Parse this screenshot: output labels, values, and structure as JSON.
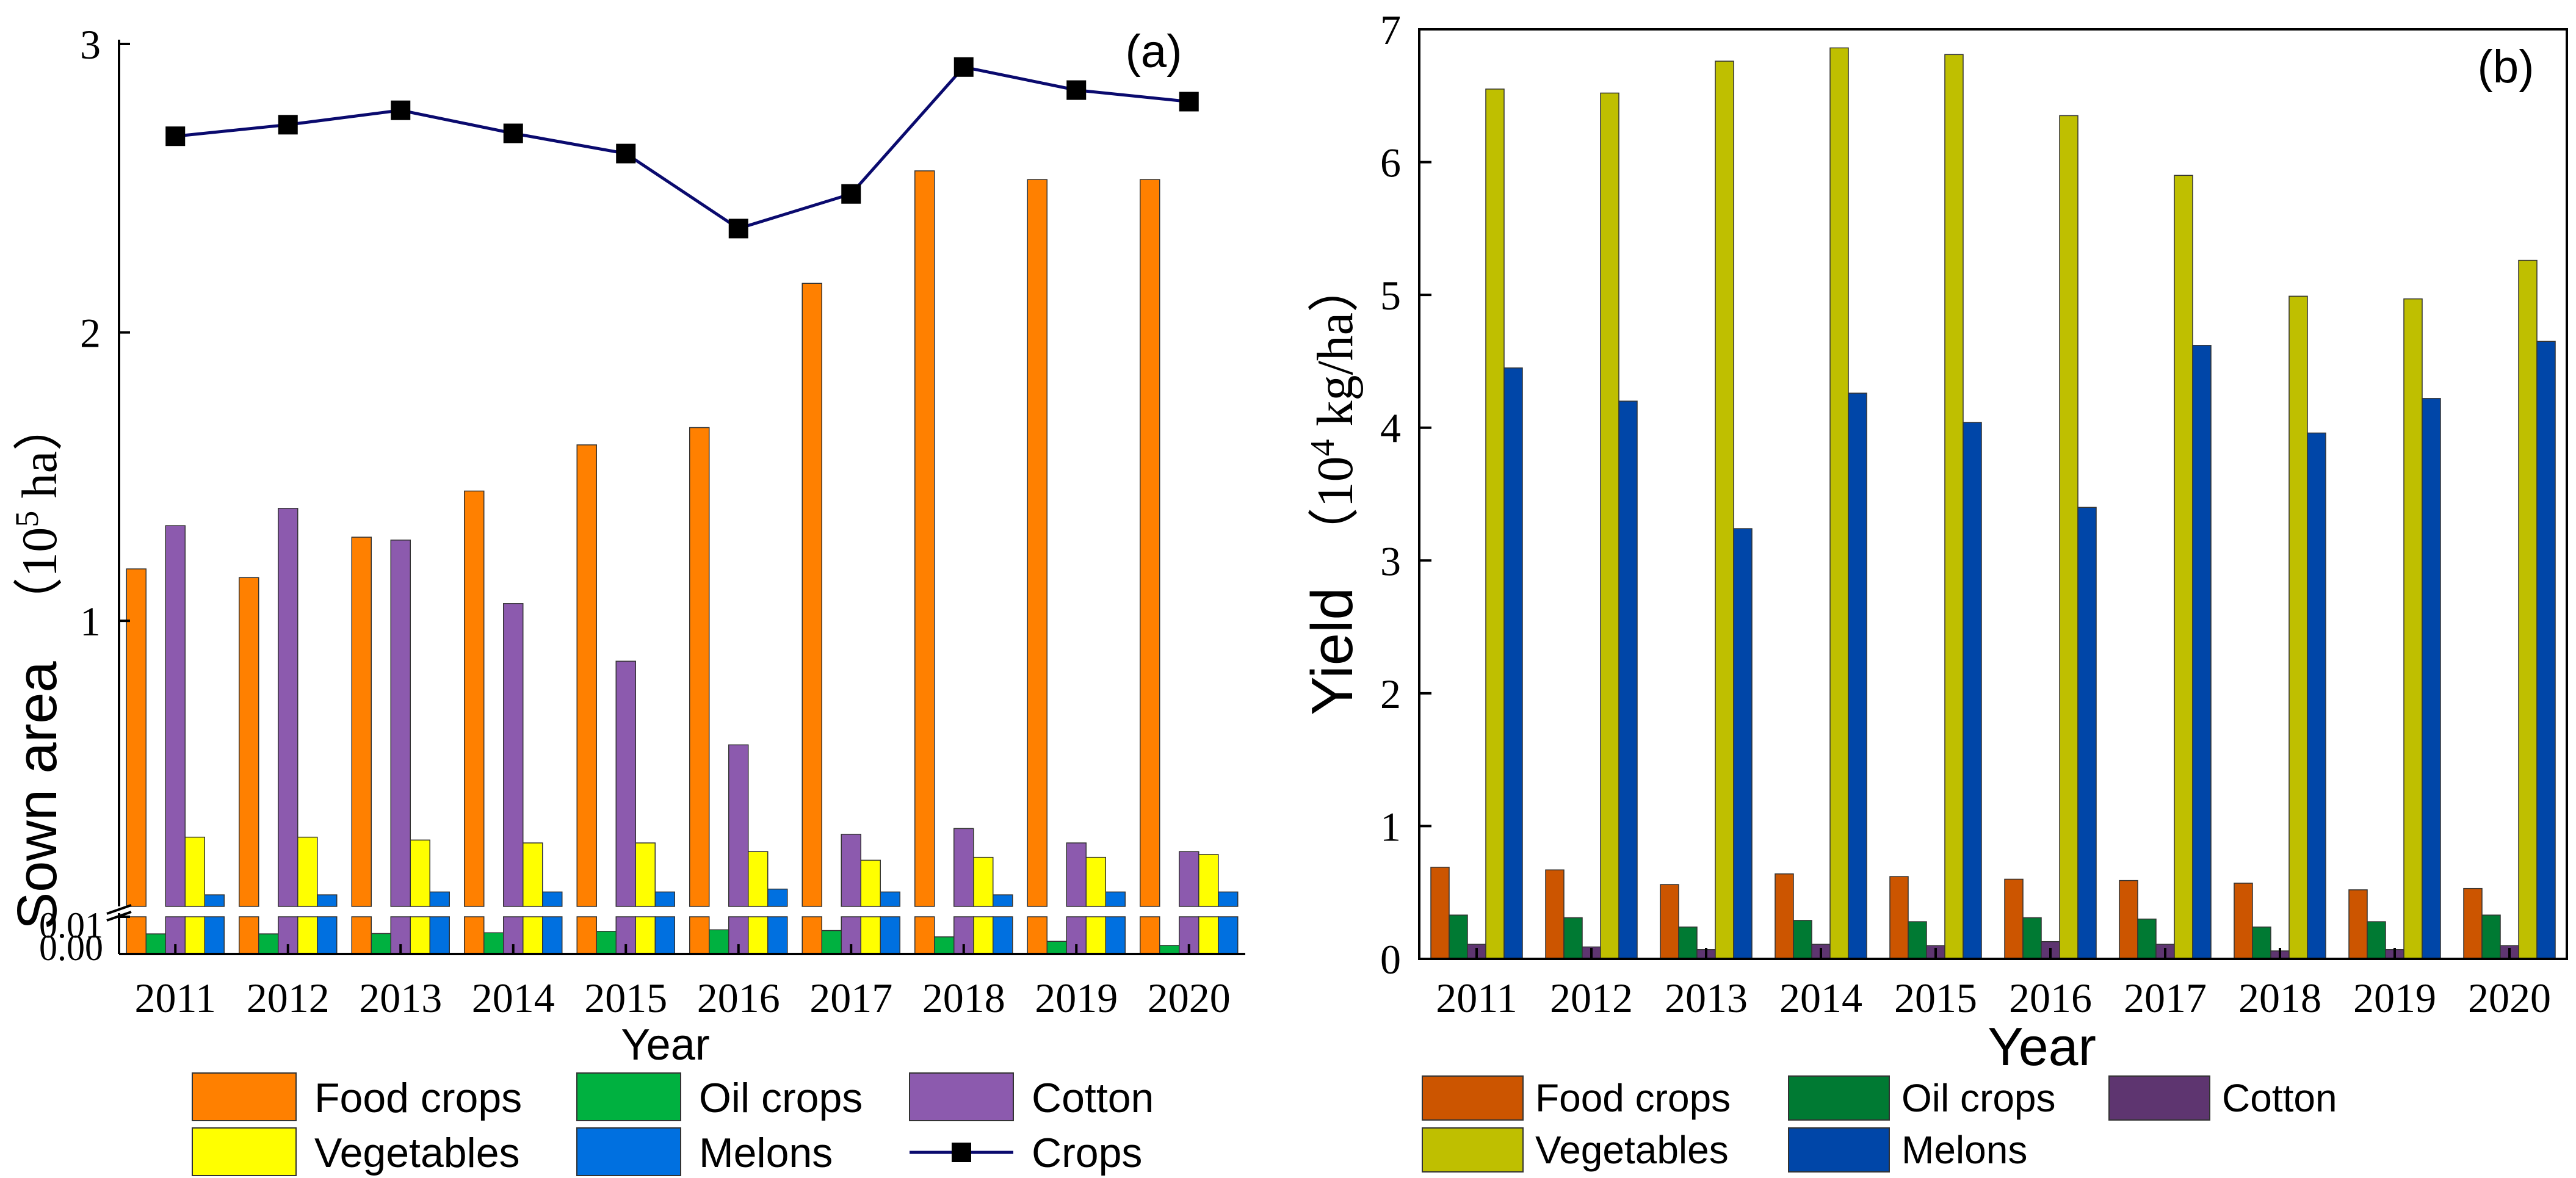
{
  "chart_data": [
    {
      "type": "bar",
      "panel_label": "(a)",
      "xlabel": "Year",
      "ylabel": "Sown area",
      "yunit_base": "10",
      "yunit_exp": "5",
      "yunit_suffix": " ha",
      "categories": [
        "2011",
        "2012",
        "2013",
        "2014",
        "2015",
        "2016",
        "2017",
        "2018",
        "2019",
        "2020"
      ],
      "axis_break": {
        "low_range": [
          0,
          0.01
        ],
        "high_range": [
          0.01,
          3
        ]
      },
      "ylim": [
        0,
        3
      ],
      "yticks_low": [
        "0.00",
        "0.01"
      ],
      "yticks_high": [
        "1",
        "2",
        "3"
      ],
      "series": [
        {
          "name": "Food crops",
          "color": "#FF8000",
          "values": [
            1.18,
            1.15,
            1.29,
            1.45,
            1.61,
            1.67,
            2.17,
            2.56,
            2.53,
            2.53
          ],
          "low_values": [
            0.01,
            0.01,
            0.01,
            0.01,
            0.01,
            0.01,
            0.01,
            0.01,
            0.01,
            0.01
          ]
        },
        {
          "name": "Oil crops",
          "color": "#00B140",
          "values": [
            0.0054,
            0.0054,
            0.0055,
            0.0057,
            0.0061,
            0.0065,
            0.0063,
            0.0046,
            0.0034,
            0.0023
          ],
          "low_values": [
            0.0054,
            0.0054,
            0.0055,
            0.0057,
            0.0061,
            0.0065,
            0.0063,
            0.0046,
            0.0034,
            0.0023
          ]
        },
        {
          "name": "Cotton",
          "color": "#8C5AAE",
          "values": [
            1.33,
            1.39,
            1.28,
            1.06,
            0.86,
            0.57,
            0.26,
            0.28,
            0.23,
            0.2
          ],
          "low_values": [
            0.01,
            0.01,
            0.01,
            0.01,
            0.01,
            0.01,
            0.01,
            0.01,
            0.01,
            0.01
          ]
        },
        {
          "name": "Vegetables",
          "color": "#FFFF00",
          "values": [
            0.25,
            0.25,
            0.24,
            0.23,
            0.23,
            0.2,
            0.17,
            0.18,
            0.18,
            0.19
          ],
          "low_values": [
            0.01,
            0.01,
            0.01,
            0.01,
            0.01,
            0.01,
            0.01,
            0.01,
            0.01,
            0.01
          ]
        },
        {
          "name": "Melons",
          "color": "#0070E0",
          "values": [
            0.05,
            0.05,
            0.06,
            0.06,
            0.06,
            0.07,
            0.06,
            0.05,
            0.06,
            0.06
          ],
          "low_values": [
            0.01,
            0.01,
            0.01,
            0.01,
            0.01,
            0.01,
            0.01,
            0.01,
            0.01,
            0.01
          ]
        }
      ],
      "line": {
        "name": "Crops",
        "color": "#0A0A6E",
        "marker": "square",
        "values": [
          2.68,
          2.72,
          2.77,
          2.69,
          2.62,
          2.36,
          2.48,
          2.92,
          2.84,
          2.8
        ]
      },
      "legend": [
        "Food crops",
        "Oil crops",
        "Cotton",
        "Vegetables",
        "Melons",
        "Crops"
      ]
    },
    {
      "type": "bar",
      "panel_label": "(b)",
      "xlabel": "Year",
      "ylabel": "Yield",
      "yunit_base": "10",
      "yunit_exp": "4",
      "yunit_suffix": " kg/ha",
      "categories": [
        "2011",
        "2012",
        "2013",
        "2014",
        "2015",
        "2016",
        "2017",
        "2018",
        "2019",
        "2020"
      ],
      "ylim": [
        0,
        7
      ],
      "yticks": [
        "0",
        "1",
        "2",
        "3",
        "4",
        "5",
        "6",
        "7"
      ],
      "series": [
        {
          "name": "Food crops",
          "color": "#CC5500",
          "values": [
            0.69,
            0.67,
            0.56,
            0.64,
            0.62,
            0.6,
            0.59,
            0.57,
            0.52,
            0.53
          ]
        },
        {
          "name": "Oil crops",
          "color": "#007A33",
          "values": [
            0.33,
            0.31,
            0.24,
            0.29,
            0.28,
            0.31,
            0.3,
            0.24,
            0.28,
            0.33
          ]
        },
        {
          "name": "Cotton",
          "color": "#5E3570",
          "values": [
            0.11,
            0.09,
            0.07,
            0.11,
            0.1,
            0.13,
            0.11,
            0.06,
            0.07,
            0.1
          ]
        },
        {
          "name": "Vegetables",
          "color": "#BFBF00",
          "values": [
            6.55,
            6.52,
            6.76,
            6.86,
            6.81,
            6.35,
            5.9,
            4.99,
            4.97,
            5.26
          ]
        },
        {
          "name": "Melons",
          "color": "#0046A8",
          "values": [
            4.45,
            4.2,
            3.24,
            4.26,
            4.04,
            3.4,
            4.62,
            3.96,
            4.22,
            4.65
          ]
        }
      ],
      "legend": [
        "Food crops",
        "Oil crops",
        "Cotton",
        "Vegetables",
        "Melons"
      ]
    }
  ]
}
